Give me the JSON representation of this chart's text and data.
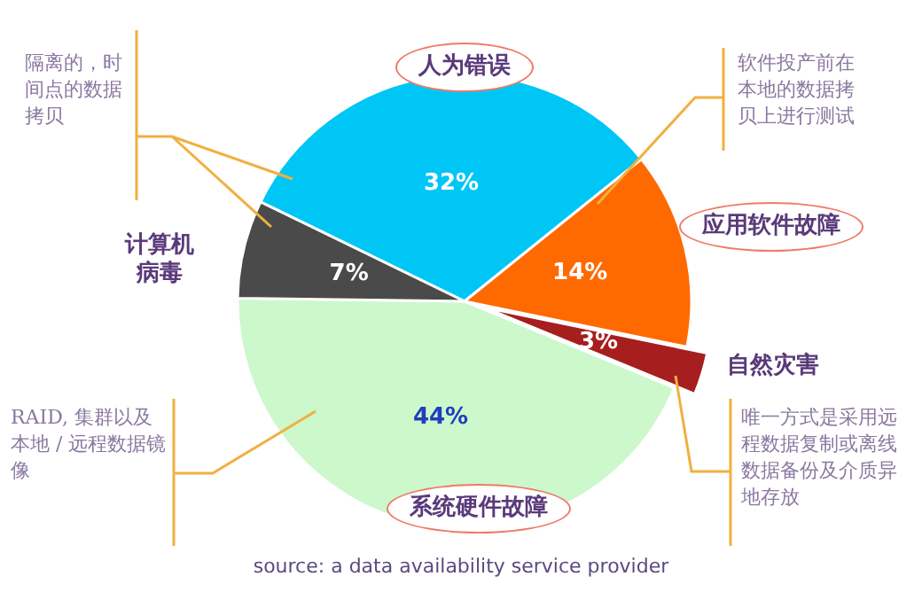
{
  "chart_data": {
    "type": "pie",
    "categories": [
      "人为错误",
      "应用软件故障",
      "自然灾害",
      "系统硬件故障",
      "计算机病毒"
    ],
    "values": [
      32,
      14,
      3,
      44,
      7
    ],
    "colors": [
      "#00c6f6",
      "#ff6a00",
      "#a61e1e",
      "#ccf8cc",
      "#4a4a4a"
    ],
    "value_labels": [
      "32%",
      "14%",
      "3%",
      "44%",
      "7%"
    ],
    "legend": false,
    "annotations": [
      "隔离的，时间点的数据拷贝",
      "软件投产前在本地的数据拷贝上进行测试",
      "RAID, 集群以及本地 / 远程数据镜像",
      "唯一方式是采用远程数据复制或离线数据备份及介质异地存放",
      "source: a data availability service provider"
    ]
  }
}
